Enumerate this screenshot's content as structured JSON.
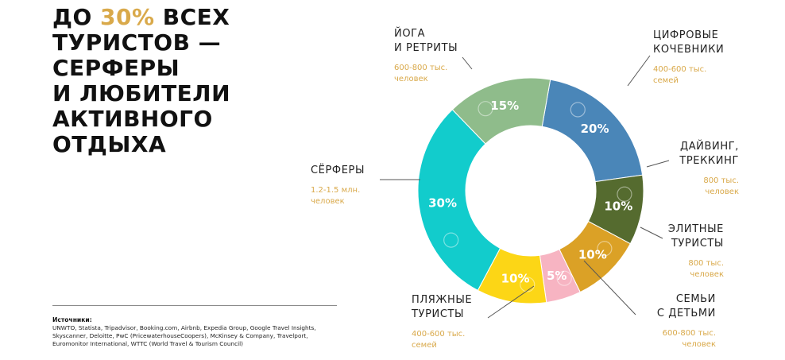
{
  "headline": {
    "l1_pre": "ДО ",
    "l1_accent": "30%",
    "l1_post": " ВСЕХ",
    "l2": "ТУРИСТОВ —",
    "l3": "СЕРФЕРЫ",
    "l4": "И ЛЮБИТЕЛИ",
    "l5": "АКТИВНОГО",
    "l6": "ОТДЫХА"
  },
  "sources": {
    "label": "Источники:",
    "text": "UNWTO, Statista, Tripadvisor, Booking.com, Airbnb, Expedia Group, Google Travel Insights, Skyscanner, Deloitte, PwC (PricewaterhouseCoopers), McKinsey & Company, Travelport, Euromonitor International, WTTC (World Travel & Tourism Council)"
  },
  "colors": {
    "accent": "#d9a94a"
  },
  "chart_data": {
    "type": "pie",
    "donut": true,
    "title": "",
    "slices": [
      {
        "label": [
          "ЦИФРОВЫЕ",
          "КОЧЕВНИКИ"
        ],
        "sub": [
          "400-600 тыс.",
          "семей"
        ],
        "value": 20,
        "text": "20%",
        "color": "#4a86b8",
        "icon": "laptop-icon"
      },
      {
        "label": [
          "ДАЙВИНГ,",
          "ТРЕККИНГ"
        ],
        "sub": [
          "800 тыс.",
          "человек"
        ],
        "value": 10,
        "text": "10%",
        "color": "#556b2f",
        "icon": "diving-mask-icon"
      },
      {
        "label": [
          "ЭЛИТНЫЕ",
          "ТУРИСТЫ"
        ],
        "sub": [
          "800 тыс.",
          "человек"
        ],
        "value": 10,
        "text": "10%",
        "color": "#dba126",
        "icon": "crown-icon"
      },
      {
        "label": [
          "СЕМЬИ",
          "С ДЕТЬМИ"
        ],
        "sub": [
          "600-800 тыс.",
          "человек"
        ],
        "value": 5,
        "text": "5%",
        "color": "#f7b4c2",
        "icon": "family-icon"
      },
      {
        "label": [
          "ПЛЯЖНЫЕ",
          "ТУРИСТЫ"
        ],
        "sub": [
          "400-600 тыс.",
          "семей"
        ],
        "value": 10,
        "text": "10%",
        "color": "#fcd616",
        "icon": "beach-umbrella-icon"
      },
      {
        "label": [
          "СЁРФЕРЫ"
        ],
        "sub": [
          "1.2-1.5 млн.",
          "человек"
        ],
        "value": 30,
        "text": "30%",
        "color": "#12cccc",
        "icon": "surfboard-icon"
      },
      {
        "label": [
          "ЙОГА",
          "И РЕТРИТЫ"
        ],
        "sub": [
          "600-800 тыс.",
          "человек"
        ],
        "value": 15,
        "text": "15%",
        "color": "#8fbc8b",
        "icon": "yoga-icon"
      }
    ]
  }
}
